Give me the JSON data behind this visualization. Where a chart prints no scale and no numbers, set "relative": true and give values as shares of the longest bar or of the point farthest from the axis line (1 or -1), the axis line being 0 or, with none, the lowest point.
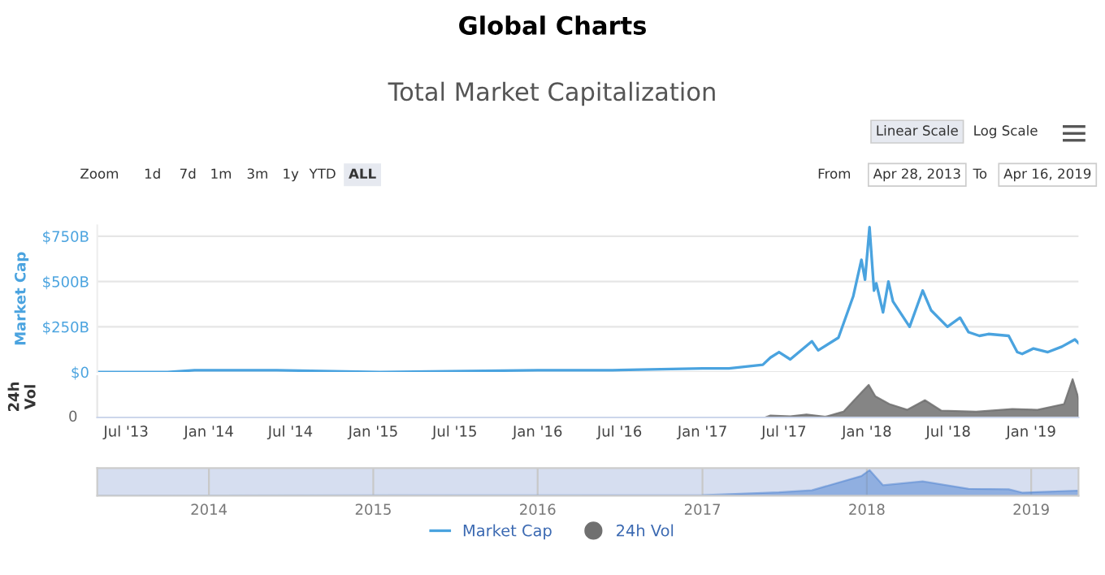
{
  "chart_data": [
    {
      "type": "line",
      "title": "Global Charts",
      "subtitle": "Total Market Capitalization",
      "ylabel": "Market Cap",
      "annotations": [
        "Linear Scale",
        "Log Scale",
        "Zoom",
        "1d",
        "7d",
        "1m",
        "3m",
        "1y",
        "YTD",
        "ALL",
        "From",
        "Apr 28, 2013",
        "To",
        "Apr 16, 2019"
      ],
      "x": [
        "2013-04-28",
        "2013-10-01",
        "2013-11-30",
        "2014-01-15",
        "2014-06-01",
        "2015-01-15",
        "2016-01-01",
        "2016-06-15",
        "2017-01-01",
        "2017-03-01",
        "2017-05-15",
        "2017-06-01",
        "2017-06-20",
        "2017-07-15",
        "2017-09-01",
        "2017-09-15",
        "2017-10-30",
        "2017-12-02",
        "2017-12-20",
        "2017-12-28",
        "2018-01-07",
        "2018-01-17",
        "2018-01-22",
        "2018-02-06",
        "2018-02-18",
        "2018-02-28",
        "2018-04-06",
        "2018-05-05",
        "2018-05-24",
        "2018-06-29",
        "2018-07-27",
        "2018-08-15",
        "2018-09-08",
        "2018-09-28",
        "2018-11-12",
        "2018-12-01",
        "2018-12-12",
        "2019-01-06",
        "2019-02-07",
        "2019-03-10",
        "2019-04-08",
        "2019-04-16"
      ],
      "series": [
        {
          "name": "Market Cap",
          "color": "#4aa3df",
          "values": [
            0,
            0,
            10,
            10,
            10,
            0,
            10,
            10,
            20,
            20,
            40,
            80,
            110,
            70,
            170,
            120,
            190,
            420,
            620,
            510,
            800,
            450,
            490,
            330,
            500,
            390,
            250,
            450,
            340,
            250,
            300,
            220,
            200,
            210,
            200,
            110,
            100,
            130,
            110,
            140,
            180,
            160
          ]
        }
      ],
      "xlim": [
        "2013-04-28",
        "2019-04-16"
      ],
      "ylim": [
        0,
        810
      ],
      "yticks": [
        {
          "value": 0,
          "label": "$0"
        },
        {
          "value": 250,
          "label": "$250B"
        },
        {
          "value": 500,
          "label": "$500B"
        },
        {
          "value": 750,
          "label": "$750B"
        }
      ],
      "tick_labels": "y",
      "grid": "y",
      "legend": "bottom"
    },
    {
      "type": "area",
      "relative": true,
      "ylabel": "24h\nVol",
      "annotations": [
        "0"
      ],
      "x": [
        "2013-04-28",
        "2017-05-20",
        "2017-06-01",
        "2017-07-15",
        "2017-08-20",
        "2017-10-01",
        "2017-11-10",
        "2017-12-20",
        "2018-01-05",
        "2018-01-20",
        "2018-02-20",
        "2018-04-01",
        "2018-05-10",
        "2018-06-15",
        "2018-09-01",
        "2018-11-20",
        "2019-01-15",
        "2019-03-15",
        "2019-04-03",
        "2019-04-16"
      ],
      "series": [
        {
          "name": "24h Vol",
          "color": "#707070",
          "values": [
            0,
            0,
            0.05,
            0.03,
            0.08,
            0.02,
            0.15,
            0.65,
            0.85,
            0.55,
            0.35,
            0.2,
            0.45,
            0.18,
            0.15,
            0.22,
            0.2,
            0.35,
            1.0,
            0.5
          ]
        }
      ],
      "xlim": [
        "2013-04-28",
        "2019-04-16"
      ],
      "xticks": [
        {
          "value": "2013-07-01",
          "label": "Jul '13"
        },
        {
          "value": "2014-01-01",
          "label": "Jan '14"
        },
        {
          "value": "2014-07-01",
          "label": "Jul '14"
        },
        {
          "value": "2015-01-01",
          "label": "Jan '15"
        },
        {
          "value": "2015-07-01",
          "label": "Jul '15"
        },
        {
          "value": "2016-01-01",
          "label": "Jan '16"
        },
        {
          "value": "2016-07-01",
          "label": "Jul '16"
        },
        {
          "value": "2017-01-01",
          "label": "Jan '17"
        },
        {
          "value": "2017-07-01",
          "label": "Jul '17"
        },
        {
          "value": "2018-01-01",
          "label": "Jan '18"
        },
        {
          "value": "2018-07-01",
          "label": "Jul '18"
        },
        {
          "value": "2019-01-01",
          "label": "Jan '19"
        }
      ],
      "tick_labels": "x",
      "legend": "bottom"
    },
    {
      "type": "area",
      "relative": true,
      "x": [
        "2013-04-28",
        "2017-01-01",
        "2017-06-20",
        "2017-09-01",
        "2017-12-20",
        "2018-01-07",
        "2018-02-06",
        "2018-05-05",
        "2018-08-15",
        "2018-11-12",
        "2018-12-12",
        "2019-04-16"
      ],
      "series": [
        {
          "color": "#4a7fd0",
          "values": [
            0,
            0.02,
            0.13,
            0.21,
            0.77,
            1.0,
            0.41,
            0.56,
            0.27,
            0.25,
            0.12,
            0.2
          ]
        }
      ],
      "xlim": [
        "2013-04-28",
        "2019-04-16"
      ],
      "xticks": [
        {
          "value": "2014-01-01",
          "label": "2014"
        },
        {
          "value": "2015-01-01",
          "label": "2015"
        },
        {
          "value": "2016-01-01",
          "label": "2016"
        },
        {
          "value": "2017-01-01",
          "label": "2017"
        },
        {
          "value": "2018-01-01",
          "label": "2018"
        },
        {
          "value": "2019-01-01",
          "label": "2019"
        }
      ],
      "tick_labels": "x",
      "grid": "x"
    }
  ]
}
